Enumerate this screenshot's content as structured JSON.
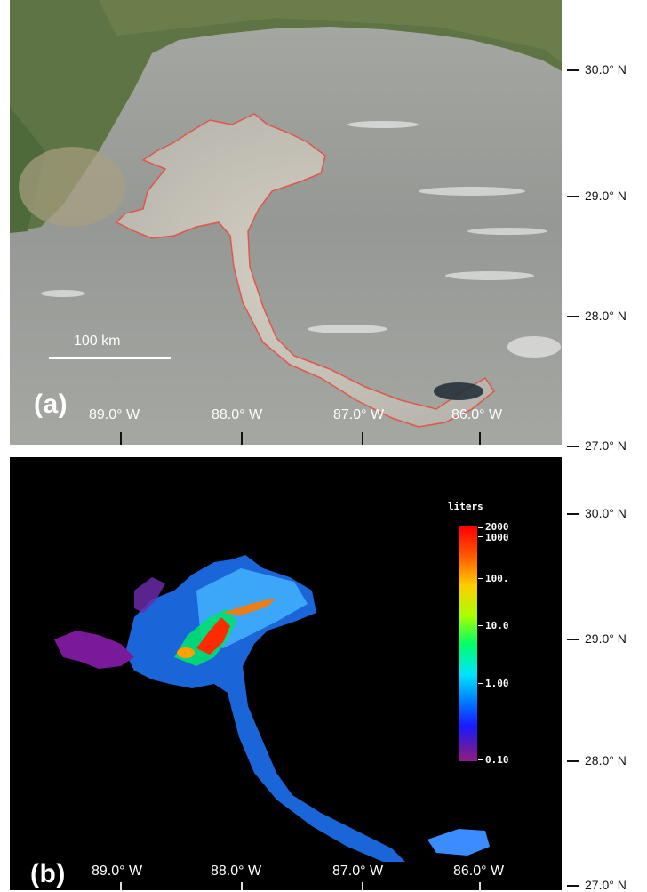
{
  "panel_a": {
    "label": "(a)",
    "scale_bar": "100 km",
    "longitudes": [
      "89.0° W",
      "88.0° W",
      "87.0° W",
      "86.0° W"
    ]
  },
  "panel_b": {
    "label": "(b)",
    "longitudes": [
      "89.0° W",
      "88.0° W",
      "87.0° W",
      "86.0° W"
    ],
    "colorbar": {
      "title": "liters",
      "labels": [
        "2000",
        "1000",
        "100.",
        "10.0",
        "1.00",
        "0.10"
      ]
    }
  },
  "latitudes": [
    "30.0° N",
    "29.0° N",
    "28.0° N",
    "27.0° N",
    "30.0° N",
    "29.0° N",
    "28.0° N",
    "27.0° N"
  ],
  "colors": {
    "sea_gray": "#8f928f",
    "land_green": "#5a7040",
    "outline_red": "#e0564a",
    "plot_background": "#000000"
  }
}
